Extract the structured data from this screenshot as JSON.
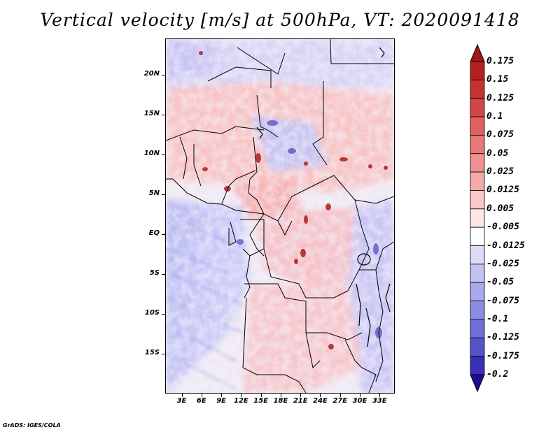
{
  "title": "Vertical velocity [m/s] at 500hPa, VT: 2020091418",
  "credit": "GrADS: IGES/COLA",
  "map": {
    "lat_labels": [
      {
        "text": "20N",
        "value": 20
      },
      {
        "text": "15N",
        "value": 15
      },
      {
        "text": "10N",
        "value": 10
      },
      {
        "text": "5N",
        "value": 5
      },
      {
        "text": "EQ",
        "value": 0
      },
      {
        "text": "5S",
        "value": -5
      },
      {
        "text": "10S",
        "value": -10
      },
      {
        "text": "15S",
        "value": -15
      }
    ],
    "lon_labels": [
      {
        "text": "3E",
        "value": 3
      },
      {
        "text": "6E",
        "value": 6
      },
      {
        "text": "9E",
        "value": 9
      },
      {
        "text": "12E",
        "value": 12
      },
      {
        "text": "15E",
        "value": 15
      },
      {
        "text": "18E",
        "value": 18
      },
      {
        "text": "21E",
        "value": 21
      },
      {
        "text": "24E",
        "value": 24
      },
      {
        "text": "27E",
        "value": 27
      },
      {
        "text": "30E",
        "value": 30
      },
      {
        "text": "33E",
        "value": 33
      }
    ],
    "lat_range": [
      -20,
      24.6
    ],
    "lon_range": [
      0.5,
      35.3
    ]
  },
  "colorbar": {
    "top_color": "#a01818",
    "bottom_color": "#1e0a96",
    "levels": [
      {
        "label": "0.175",
        "color": "#b42020"
      },
      {
        "label": "0.15",
        "color": "#c43232"
      },
      {
        "label": "0.125",
        "color": "#d44646"
      },
      {
        "label": "0.1",
        "color": "#e06060"
      },
      {
        "label": "0.075",
        "color": "#e87878"
      },
      {
        "label": "0.05",
        "color": "#f09090"
      },
      {
        "label": "0.025",
        "color": "#f5aaaa"
      },
      {
        "label": "0.0125",
        "color": "#f9c8c8"
      },
      {
        "label": "0.005",
        "color": "#fde6e6"
      },
      {
        "label": "-0.005",
        "color": "#ffffff"
      },
      {
        "label": "-0.0125",
        "color": "#dcdcfa"
      },
      {
        "label": "-0.025",
        "color": "#c2c2f4"
      },
      {
        "label": "-0.05",
        "color": "#a8a8ee"
      },
      {
        "label": "-0.075",
        "color": "#8c8ce4"
      },
      {
        "label": "-0.1",
        "color": "#7070d8"
      },
      {
        "label": "-0.125",
        "color": "#5454c8"
      },
      {
        "label": "-0.175",
        "color": "#3a30b4"
      },
      {
        "label": "-0.2",
        "color": "#2a1aa4"
      }
    ]
  }
}
